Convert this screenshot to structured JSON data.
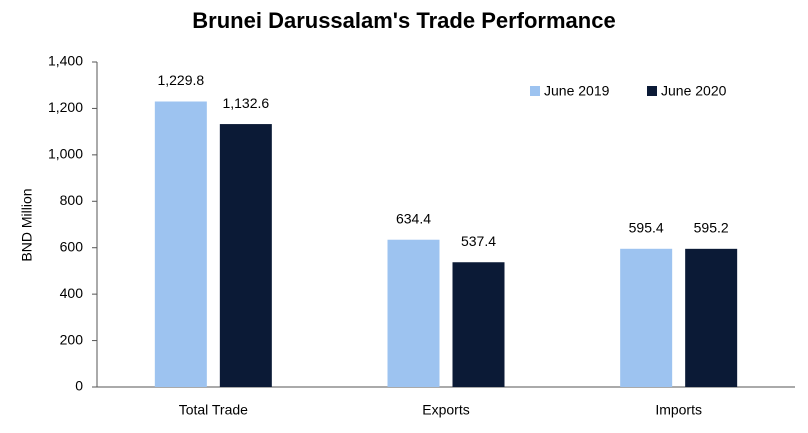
{
  "chart_data": {
    "type": "bar",
    "title": "Brunei Darussalam's Trade Performance",
    "y_label": "BND Million",
    "categories": [
      "Total Trade",
      "Exports",
      "Imports"
    ],
    "series": [
      {
        "name": "June 2019",
        "color": "#9dc3f0",
        "values": [
          1229.8,
          634.4,
          595.4
        ],
        "value_labels": [
          "1,229.8",
          "634.4",
          "595.4"
        ]
      },
      {
        "name": "June 2020",
        "color": "#0b1a36",
        "values": [
          1132.6,
          537.4,
          595.2
        ],
        "value_labels": [
          "1,132.6",
          "537.4",
          "595.2"
        ]
      }
    ],
    "ylim": [
      0,
      1400
    ],
    "yticks": [
      0,
      200,
      400,
      600,
      800,
      {
        "value": 1000,
        "label": "1,000"
      },
      {
        "value": 1200,
        "label": "1,200"
      },
      {
        "value": 1400,
        "label": "1,400"
      }
    ],
    "legend": "top-right"
  }
}
